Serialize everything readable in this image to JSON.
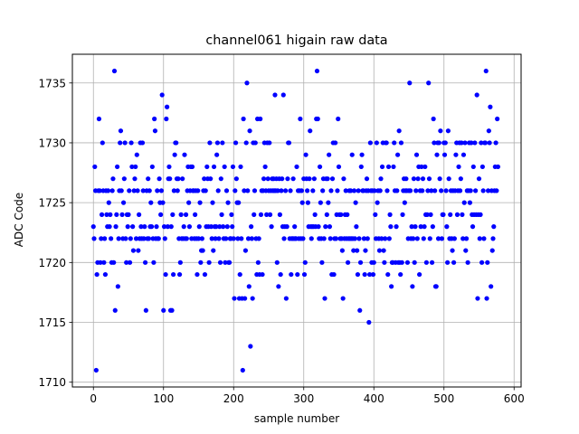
{
  "chart_data": {
    "type": "scatter",
    "title": "channel061 higain raw data",
    "xlabel": "sample number",
    "ylabel": "ADC Code",
    "xlim": [
      -30,
      610
    ],
    "ylim": [
      1709.6,
      1737.4
    ],
    "xticks": [
      0,
      100,
      200,
      300,
      400,
      500,
      600
    ],
    "yticks": [
      1710,
      1715,
      1720,
      1725,
      1730,
      1735
    ],
    "grid": true,
    "marker_color": "#0000ff",
    "series": [
      {
        "values": [
          1723,
          1722,
          1728,
          1726,
          1711,
          1719,
          1720,
          1726,
          1732,
          1726,
          1720,
          1722,
          1724,
          1730,
          1726,
          1720,
          1722,
          1719,
          1726,
          1724,
          1723,
          1726,
          1725,
          1723,
          1724,
          1722,
          1720,
          1726,
          1727,
          1720,
          1736,
          1716,
          1723,
          1724,
          1728,
          1718,
          1722,
          1726,
          1730,
          1731,
          1726,
          1724,
          1722,
          1725,
          1727,
          1730,
          1722,
          1720,
          1724,
          1723,
          1724,
          1726,
          1720,
          1722,
          1730,
          1728,
          1723,
          1721,
          1726,
          1727,
          1728,
          1722,
          1729,
          1726,
          1721,
          1724,
          1722,
          1730,
          1723,
          1722,
          1730,
          1726,
          1722,
          1723,
          1720,
          1716,
          1726,
          1722,
          1727,
          1722,
          1726,
          1723,
          1725,
          1723,
          1728,
          1722,
          1720,
          1732,
          1731,
          1722,
          1723,
          1726,
          1722,
          1722,
          1727,
          1725,
          1724,
          1726,
          1734,
          1725,
          1716,
          1723,
          1722,
          1719,
          1732,
          1733,
          1723,
          1727,
          1728,
          1727,
          1716,
          1723,
          1716,
          1724,
          1719,
          1726,
          1729,
          1730,
          1730,
          1727,
          1726,
          1727,
          1722,
          1719,
          1720,
          1724,
          1722,
          1727,
          1722,
          1723,
          1729,
          1722,
          1724,
          1722,
          1726,
          1728,
          1725,
          1723,
          1726,
          1728,
          1722,
          1728,
          1726,
          1726,
          1722,
          1724,
          1726,
          1722,
          1719,
          1726,
          1722,
          1723,
          1725,
          1720,
          1721,
          1722,
          1721,
          1726,
          1727,
          1719,
          1726,
          1723,
          1728,
          1727,
          1723,
          1720,
          1730,
          1727,
          1723,
          1722,
          1725,
          1721,
          1728,
          1723,
          1722,
          1723,
          1729,
          1730,
          1726,
          1722,
          1723,
          1720,
          1727,
          1724,
          1730,
          1723,
          1722,
          1728,
          1720,
          1722,
          1726,
          1723,
          1725,
          1720,
          1720,
          1722,
          1722,
          1724,
          1723,
          1728,
          1722,
          1717,
          1726,
          1730,
          1727,
          1725,
          1722,
          1725,
          1717,
          1719,
          1728,
          1722,
          1717,
          1711,
          1732,
          1726,
          1717,
          1721,
          1730,
          1735,
          1726,
          1722,
          1718,
          1731,
          1713,
          1723,
          1722,
          1717,
          1730,
          1724,
          1726,
          1730,
          1722,
          1719,
          1732,
          1720,
          1722,
          1719,
          1732,
          1724,
          1726,
          1719,
          1726,
          1727,
          1730,
          1728,
          1726,
          1724,
          1730,
          1727,
          1726,
          1730,
          1724,
          1726,
          1723,
          1727,
          1726,
          1727,
          1726,
          1734,
          1726,
          1727,
          1720,
          1726,
          1718,
          1727,
          1724,
          1719,
          1726,
          1727,
          1723,
          1734,
          1722,
          1723,
          1726,
          1717,
          1723,
          1727,
          1730,
          1730,
          1722,
          1726,
          1719,
          1722,
          1722,
          1727,
          1722,
          1723,
          1722,
          1722,
          1728,
          1719,
          1726,
          1722,
          1726,
          1732,
          1722,
          1726,
          1725,
          1722,
          1727,
          1719,
          1720,
          1729,
          1727,
          1726,
          1725,
          1723,
          1727,
          1731,
          1723,
          1722,
          1723,
          1726,
          1723,
          1727,
          1724,
          1723,
          1732,
          1736,
          1732,
          1723,
          1722,
          1728,
          1725,
          1722,
          1720,
          1726,
          1727,
          1722,
          1717,
          1723,
          1727,
          1724,
          1727,
          1725,
          1729,
          1723,
          1722,
          1726,
          1719,
          1727,
          1730,
          1719,
          1722,
          1730,
          1722,
          1724,
          1726,
          1732,
          1728,
          1724,
          1722,
          1724,
          1722,
          1721,
          1717,
          1727,
          1722,
          1724,
          1726,
          1722,
          1724,
          1720,
          1722,
          1726,
          1722,
          1726,
          1722,
          1729,
          1722,
          1721,
          1726,
          1722,
          1725,
          1723,
          1721,
          1719,
          1726,
          1722,
          1716,
          1720,
          1728,
          1729,
          1726,
          1726,
          1722,
          1719,
          1721,
          1726,
          1727,
          1722,
          1726,
          1715,
          1719,
          1730,
          1726,
          1720,
          1726,
          1719,
          1720,
          1726,
          1724,
          1722,
          1730,
          1725,
          1726,
          1722,
          1721,
          1726,
          1727,
          1722,
          1728,
          1730,
          1721,
          1720,
          1722,
          1730,
          1730,
          1726,
          1719,
          1728,
          1722,
          1724,
          1723,
          1718,
          1720,
          1720,
          1728,
          1730,
          1726,
          1720,
          1723,
          1726,
          1729,
          1720,
          1731,
          1720,
          1719,
          1730,
          1720,
          1724,
          1726,
          1727,
          1725,
          1726,
          1727,
          1726,
          1720,
          1722,
          1726,
          1735,
          1726,
          1722,
          1723,
          1718,
          1722,
          1727,
          1720,
          1723,
          1726,
          1729,
          1722,
          1727,
          1728,
          1719,
          1726,
          1723,
          1728,
          1726,
          1727,
          1722,
          1723,
          1728,
          1724,
          1720,
          1724,
          1726,
          1735,
          1727,
          1722,
          1724,
          1726,
          1720,
          1723,
          1732,
          1730,
          1726,
          1718,
          1718,
          1729,
          1730,
          1722,
          1730,
          1727,
          1731,
          1726,
          1722,
          1724,
          1724,
          1730,
          1729,
          1730,
          1726,
          1723,
          1720,
          1731,
          1727,
          1722,
          1724,
          1726,
          1722,
          1721,
          1726,
          1720,
          1722,
          1726,
          1729,
          1730,
          1724,
          1726,
          1728,
          1730,
          1726,
          1727,
          1730,
          1724,
          1722,
          1729,
          1725,
          1730,
          1721,
          1722,
          1726,
          1720,
          1726,
          1730,
          1725,
          1726,
          1730,
          1724,
          1723,
          1728,
          1724,
          1730,
          1726,
          1724,
          1734,
          1717,
          1724,
          1727,
          1722,
          1724,
          1730,
          1720,
          1728,
          1726,
          1722,
          1730,
          1730,
          1736,
          1717,
          1720,
          1726,
          1731,
          1730,
          1733,
          1718,
          1726,
          1721,
          1722,
          1723,
          1726,
          1728,
          1730,
          1726,
          1732,
          1728
        ]
      }
    ]
  }
}
